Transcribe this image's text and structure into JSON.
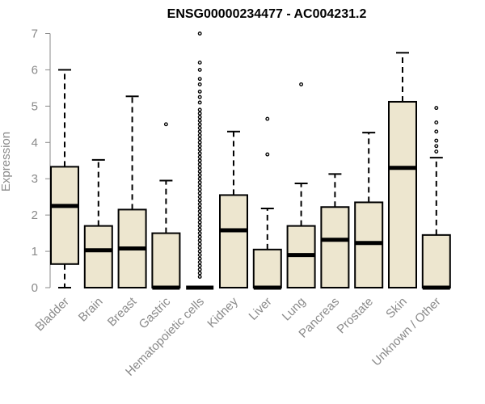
{
  "chart_data": {
    "type": "box",
    "title": "ENSG00000234477 - AC004231.2",
    "ylabel": "Expression",
    "xlabel": "",
    "ylim": [
      0,
      7
    ],
    "yticks": [
      "0",
      "1",
      "2",
      "3",
      "4",
      "5",
      "6",
      "7"
    ],
    "grid": false,
    "legend": "none",
    "colors": {
      "box_fill": "#ede6cf",
      "stroke": "#000000",
      "axis_text": "#8a8a8a",
      "outlier": "#000000"
    },
    "categories": [
      "Bladder",
      "Brain",
      "Breast",
      "Gastric",
      "Hematopoietic cells",
      "Kidney",
      "Liver",
      "Lung",
      "Pancreas",
      "Prostate",
      "Skin",
      "Unknown / Other"
    ],
    "boxes": [
      {
        "min": 0,
        "q1": 0.65,
        "median": 2.25,
        "q3": 3.33,
        "max": 6.0,
        "outliers": []
      },
      {
        "min": 0,
        "q1": 0,
        "median": 1.03,
        "q3": 1.7,
        "max": 3.52,
        "outliers": []
      },
      {
        "min": 0,
        "q1": 0,
        "median": 1.08,
        "q3": 2.15,
        "max": 5.27,
        "outliers": []
      },
      {
        "min": 0,
        "q1": 0,
        "median": 0,
        "q3": 1.5,
        "max": 2.95,
        "outliers": [
          4.5
        ]
      },
      {
        "min": 0,
        "q1": 0,
        "median": 0,
        "q3": 0,
        "max": 0,
        "outliers": [
          0.3,
          0.4,
          0.5,
          0.6,
          0.7,
          0.8,
          0.9,
          1.0,
          1.1,
          1.2,
          1.3,
          1.4,
          1.5,
          1.6,
          1.7,
          1.8,
          1.9,
          2.0,
          2.1,
          2.2,
          2.3,
          2.4,
          2.5,
          2.6,
          2.7,
          2.8,
          2.9,
          3.0,
          3.1,
          3.2,
          3.3,
          3.4,
          3.5,
          3.6,
          3.7,
          3.8,
          3.9,
          4.0,
          4.1,
          4.2,
          4.3,
          4.4,
          4.5,
          4.6,
          4.7,
          4.8,
          4.9,
          5.1,
          5.25,
          5.4,
          5.6,
          5.75,
          6.0,
          6.2,
          7.0
        ]
      },
      {
        "min": 0,
        "q1": 0,
        "median": 1.58,
        "q3": 2.55,
        "max": 4.3,
        "outliers": []
      },
      {
        "min": 0,
        "q1": 0,
        "median": 0,
        "q3": 1.05,
        "max": 2.18,
        "outliers": [
          3.67,
          4.65
        ]
      },
      {
        "min": 0,
        "q1": 0,
        "median": 0.9,
        "q3": 1.7,
        "max": 2.87,
        "outliers": [
          5.6
        ]
      },
      {
        "min": 0,
        "q1": 0,
        "median": 1.32,
        "q3": 2.22,
        "max": 3.13,
        "outliers": []
      },
      {
        "min": 0,
        "q1": 0,
        "median": 1.23,
        "q3": 2.35,
        "max": 4.27,
        "outliers": []
      },
      {
        "min": 0,
        "q1": 0,
        "median": 3.3,
        "q3": 5.12,
        "max": 6.47,
        "outliers": []
      },
      {
        "min": 0,
        "q1": 0,
        "median": 0,
        "q3": 1.45,
        "max": 3.58,
        "outliers": [
          3.75,
          3.9,
          4.05,
          4.3,
          4.55,
          4.95
        ]
      }
    ]
  }
}
